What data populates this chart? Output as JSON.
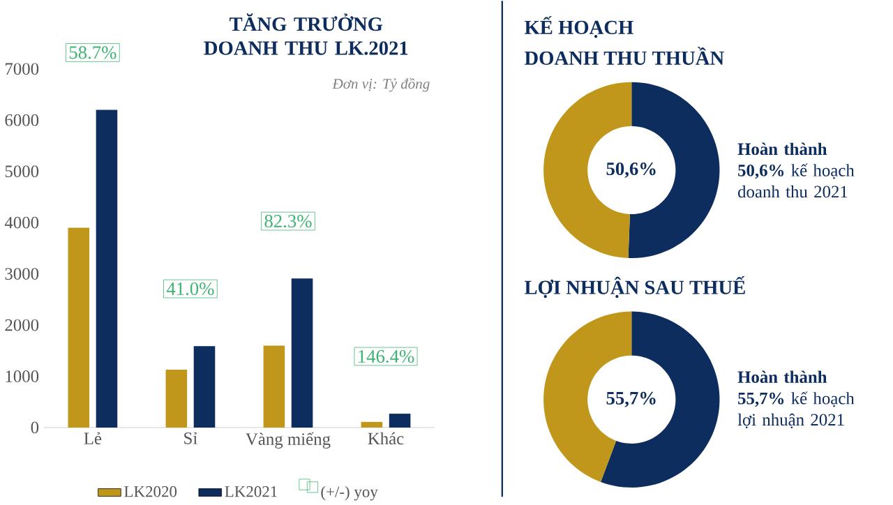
{
  "chart_data": [
    {
      "type": "bar",
      "title": "TĂNG TRƯỞNG DOANH THU LK.2021",
      "categories": [
        "Lẻ",
        "Sỉ",
        "Vàng miếng",
        "Khác"
      ],
      "series": [
        {
          "name": "LK2020",
          "color": "#c0961b",
          "values": [
            3900,
            1130,
            1600,
            110
          ]
        },
        {
          "name": "LK2021",
          "color": "#0d2d5e",
          "values": [
            6200,
            1590,
            2910,
            270
          ]
        },
        {
          "name": "(+/-) yoy",
          "color": "#3cb371",
          "values": [
            null,
            null,
            null,
            null
          ]
        }
      ],
      "ylim": [
        0,
        7600
      ],
      "yticks": [
        0,
        1000,
        2000,
        3000,
        4000,
        5000,
        6000,
        7000
      ],
      "legend": "bottom",
      "annotations": [
        "Đơn vị: Tỷ đồng",
        "58.7%",
        "41.0%",
        "82.3%",
        "146.4%"
      ]
    },
    {
      "type": "donut",
      "title": "KẾ HOẠCH",
      "subtitle": "DOANH THU THUẦN",
      "categories": [
        null,
        null
      ],
      "values": [
        50.6,
        49.4
      ],
      "colors": [
        "#0d2d5e",
        "#c0961b"
      ],
      "annotations": [
        "50,6%",
        "**Hoàn thành 50,6%** kế hoạch doanh thu 2021"
      ]
    },
    {
      "type": "donut",
      "title": "LỢI NHUẬN SAU THUẾ",
      "categories": [
        null,
        null
      ],
      "values": [
        55.7,
        44.3
      ],
      "colors": [
        "#0d2d5e",
        "#c0961b"
      ],
      "annotations": [
        "55,7%",
        "**Hoàn thành 55,7%** kế hoạch lợi nhuận 2021"
      ]
    }
  ]
}
